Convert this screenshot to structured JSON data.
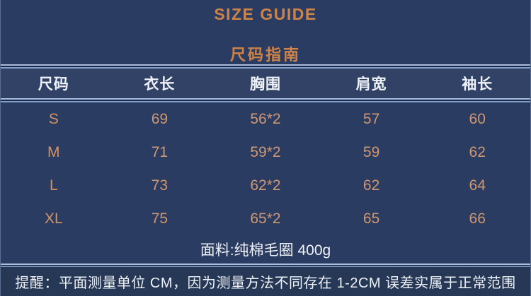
{
  "title": "SIZE GUIDE",
  "subtitle": "尺码指南",
  "table": {
    "headers": [
      "尺码",
      "衣长",
      "胸围",
      "肩宽",
      "袖长"
    ],
    "rows": [
      {
        "size": "S",
        "values": [
          "69",
          "56*2",
          "57",
          "60"
        ]
      },
      {
        "size": "M",
        "values": [
          "71",
          "59*2",
          "59",
          "62"
        ]
      },
      {
        "size": "L",
        "values": [
          "73",
          "62*2",
          "62",
          "64"
        ]
      },
      {
        "size": "XL",
        "values": [
          "75",
          "65*2",
          "65",
          "66"
        ]
      }
    ]
  },
  "fabric_note": "面料:纯棉毛圈 400g",
  "reminder": "提醒：平面测量单位 CM，因为测量方法不同存在 1-2CM 误差实属于正常范围",
  "colors": {
    "background": "#2b3c62",
    "accent_orange": "#ce8448",
    "value_salmon": "#cf9770",
    "text_white": "#eef2f7",
    "divider_light": "#a9bedb"
  }
}
